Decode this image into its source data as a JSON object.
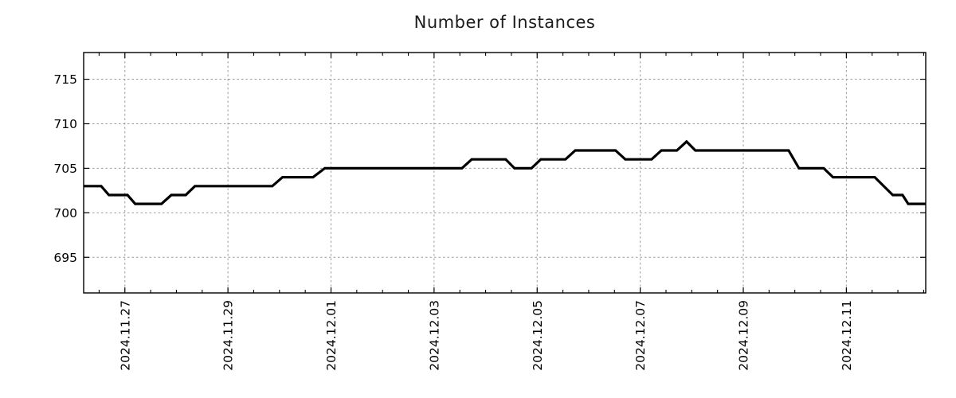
{
  "chart_data": {
    "type": "line",
    "title": "Number of Instances",
    "xlabel": "",
    "ylabel": "",
    "grid": true,
    "legend": false,
    "x_unit": "days since plot start (2024.11.26 ~05:00)",
    "xlim": [
      0,
      16.34
    ],
    "ylim": [
      691,
      718
    ],
    "y_ticks": [
      695,
      700,
      705,
      710,
      715
    ],
    "x_ticks": [
      {
        "d": 0.8,
        "label": "2024.11.27"
      },
      {
        "d": 2.8,
        "label": "2024.11.29"
      },
      {
        "d": 4.8,
        "label": "2024.12.01"
      },
      {
        "d": 6.8,
        "label": "2024.12.03"
      },
      {
        "d": 8.8,
        "label": "2024.12.05"
      },
      {
        "d": 10.8,
        "label": "2024.12.07"
      },
      {
        "d": 12.8,
        "label": "2024.12.09"
      },
      {
        "d": 14.8,
        "label": "2024.12.11"
      }
    ],
    "x_minor": {
      "start": 0.3,
      "step": 0.5
    },
    "series": [
      {
        "name": "instances",
        "points": [
          [
            0.0,
            703
          ],
          [
            0.34,
            703
          ],
          [
            0.49,
            702
          ],
          [
            0.85,
            702
          ],
          [
            1.0,
            701
          ],
          [
            1.51,
            701
          ],
          [
            1.7,
            702
          ],
          [
            1.98,
            702
          ],
          [
            2.16,
            703
          ],
          [
            3.66,
            703
          ],
          [
            3.86,
            704
          ],
          [
            4.45,
            704
          ],
          [
            4.68,
            705
          ],
          [
            7.34,
            705
          ],
          [
            7.53,
            706
          ],
          [
            8.19,
            706
          ],
          [
            8.36,
            705
          ],
          [
            8.69,
            705
          ],
          [
            8.87,
            706
          ],
          [
            9.35,
            706
          ],
          [
            9.54,
            707
          ],
          [
            10.32,
            707
          ],
          [
            10.51,
            706
          ],
          [
            11.02,
            706
          ],
          [
            11.21,
            707
          ],
          [
            11.51,
            707
          ],
          [
            11.7,
            708
          ],
          [
            11.87,
            707
          ],
          [
            13.68,
            707
          ],
          [
            13.88,
            705
          ],
          [
            14.36,
            705
          ],
          [
            14.54,
            704
          ],
          [
            15.35,
            704
          ],
          [
            15.7,
            702
          ],
          [
            15.89,
            702
          ],
          [
            16.0,
            701
          ],
          [
            16.34,
            701
          ]
        ]
      }
    ]
  },
  "colors": {
    "line": "#000000",
    "grid": "#9a9a9a",
    "axis": "#000000",
    "text": "#000000",
    "background": "#ffffff"
  }
}
